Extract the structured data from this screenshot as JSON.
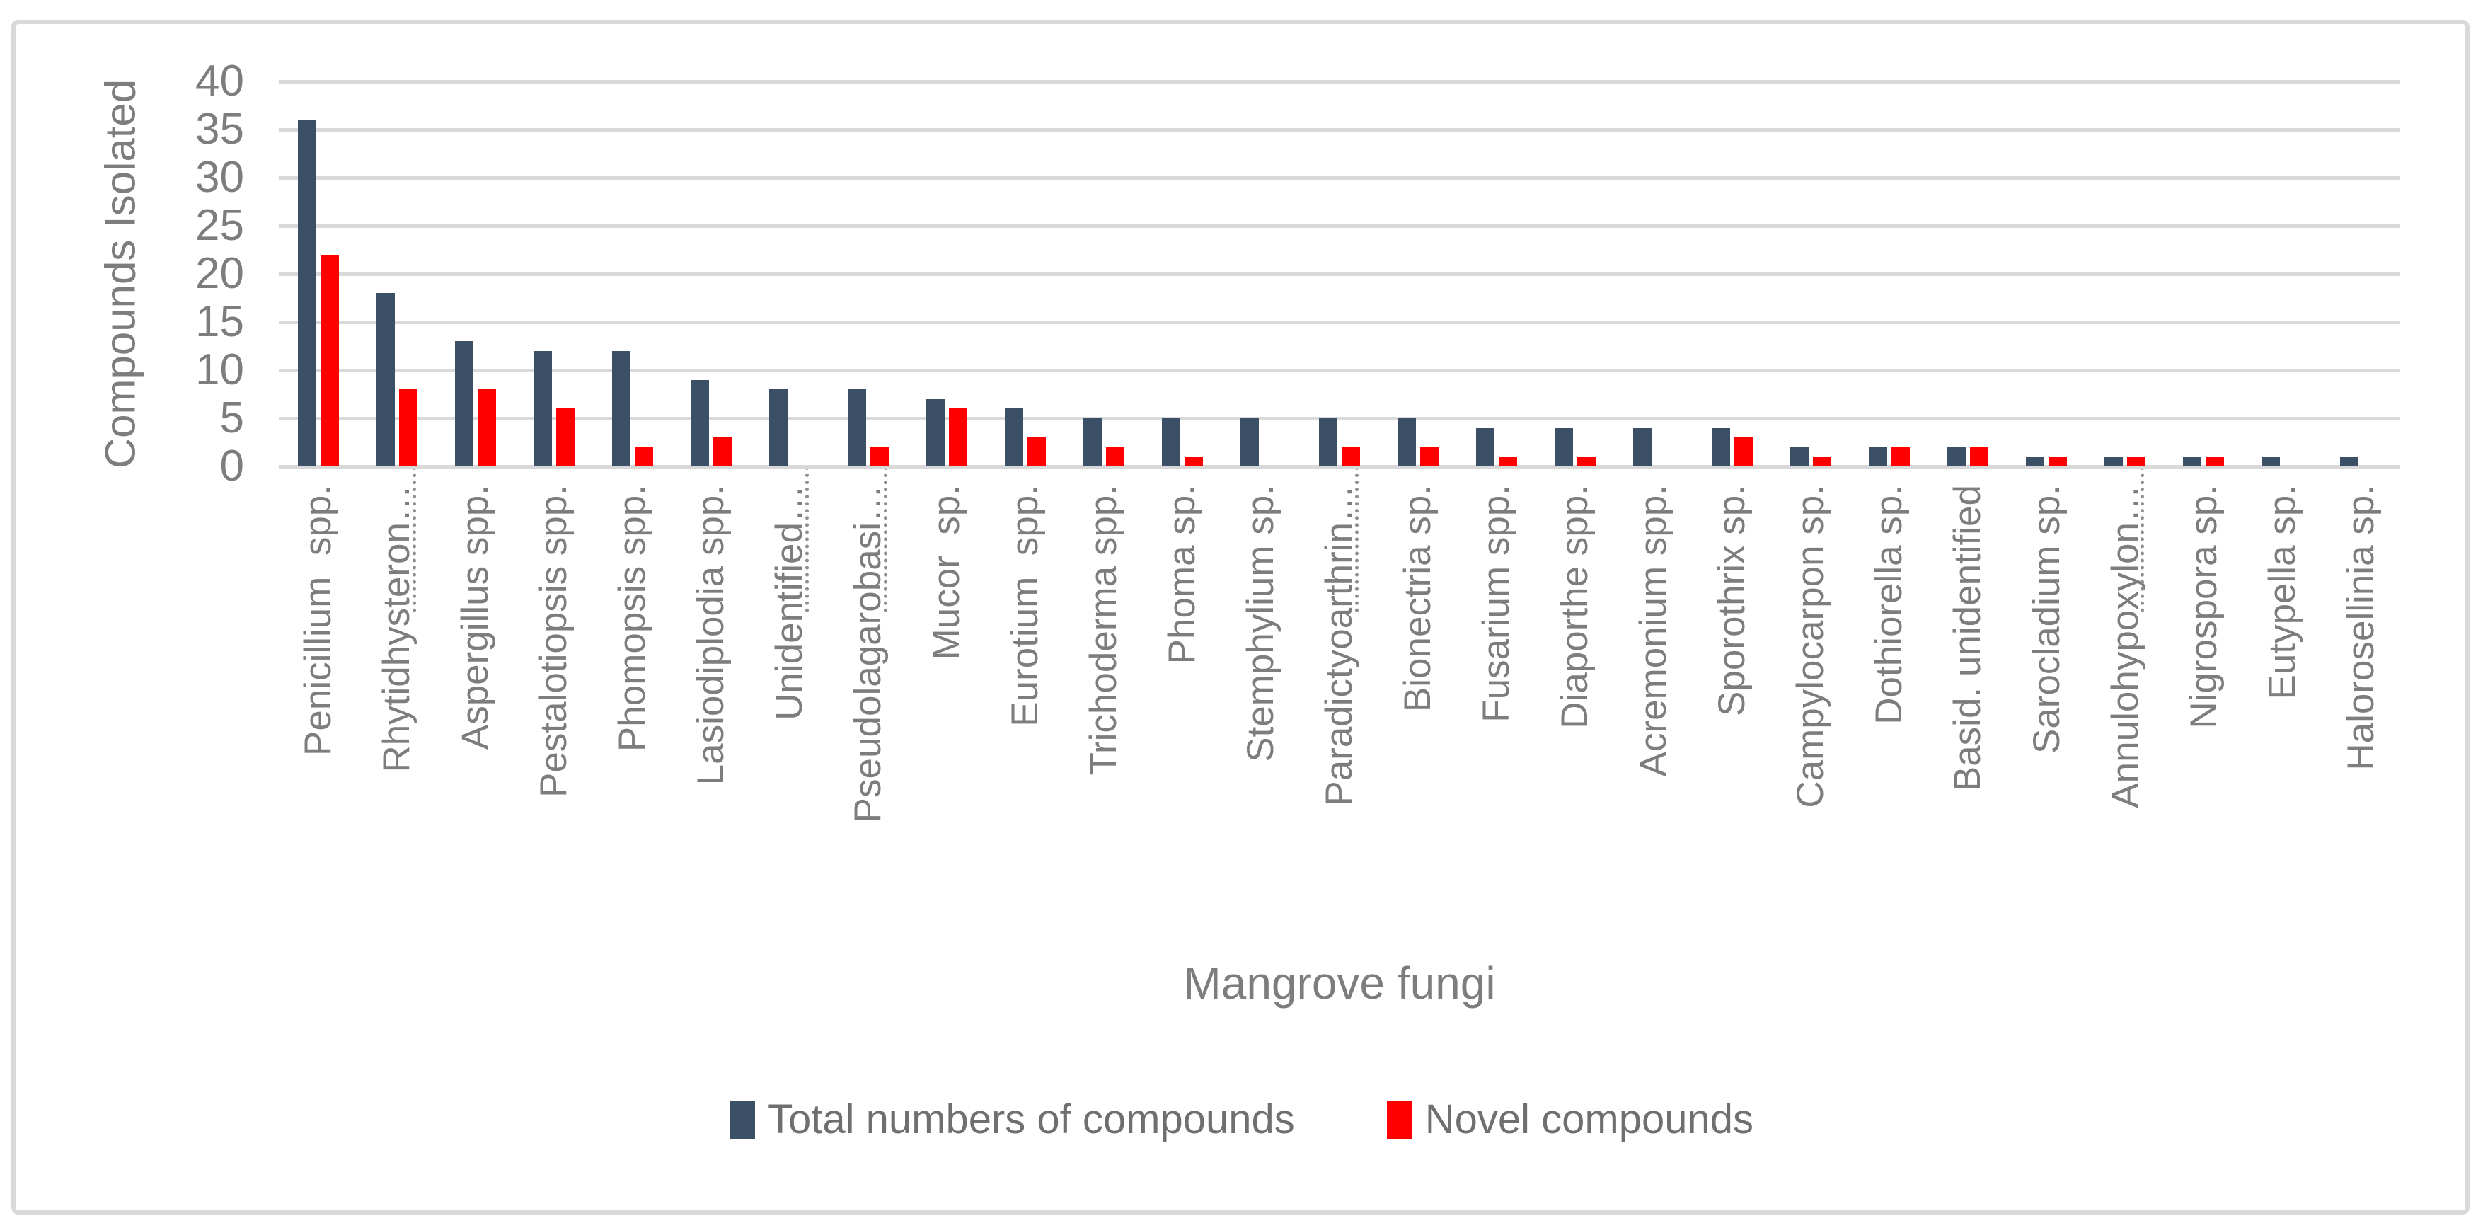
{
  "chart_data": {
    "type": "bar",
    "xlabel": "Mangrove fungi",
    "ylabel": "Compounds Isolated",
    "ylim": [
      0,
      40
    ],
    "yticks": [
      0,
      5,
      10,
      15,
      20,
      25,
      30,
      35,
      40
    ],
    "grid": true,
    "gridline_color": "#D9D9D9",
    "legend_position": "bottom-center",
    "categories": [
      {
        "label": "Penicillium  spp.",
        "truncated": false
      },
      {
        "label": "Rhytidhysteron…",
        "truncated": true
      },
      {
        "label": "Aspergillus spp.",
        "truncated": false
      },
      {
        "label": "Pestalotiopsis spp.",
        "truncated": false
      },
      {
        "label": "Phomopsis spp.",
        "truncated": false
      },
      {
        "label": "Lasiodiplodia spp.",
        "truncated": false
      },
      {
        "label": "Unidentified…",
        "truncated": true
      },
      {
        "label": "Pseudolagarobasi…",
        "truncated": true
      },
      {
        "label": "Mucor  sp.",
        "truncated": false
      },
      {
        "label": "Eurotium  spp.",
        "truncated": false
      },
      {
        "label": "Trichoderma spp.",
        "truncated": false
      },
      {
        "label": "Phoma sp.",
        "truncated": false
      },
      {
        "label": "Stemphylium sp.",
        "truncated": false
      },
      {
        "label": "Paradictyoarthrin…",
        "truncated": true
      },
      {
        "label": "Bionectria sp.",
        "truncated": false
      },
      {
        "label": "Fusarium spp.",
        "truncated": false
      },
      {
        "label": "Diaporthe spp.",
        "truncated": false
      },
      {
        "label": "Acremonium spp.",
        "truncated": false
      },
      {
        "label": "Sporothrix sp.",
        "truncated": false
      },
      {
        "label": "Campylocarpon sp.",
        "truncated": false
      },
      {
        "label": "Dothiorella sp.",
        "truncated": false
      },
      {
        "label": "Basid. unidentified",
        "truncated": false
      },
      {
        "label": "Sarocladium sp.",
        "truncated": false
      },
      {
        "label": "Annulohypoxylon…",
        "truncated": true
      },
      {
        "label": "Nigrospora sp.",
        "truncated": false
      },
      {
        "label": "Eutypella sp.",
        "truncated": false
      },
      {
        "label": "Halorosellinia sp.",
        "truncated": false
      }
    ],
    "series": [
      {
        "id": "total-compounds",
        "name": "Total numbers of compounds",
        "color": "#3B5067",
        "values": [
          36,
          18,
          13,
          12,
          12,
          9,
          8,
          8,
          7,
          6,
          5,
          5,
          5,
          5,
          5,
          4,
          4,
          4,
          4,
          2,
          2,
          2,
          1,
          1,
          1,
          1,
          1
        ]
      },
      {
        "id": "novel-compounds",
        "name": "Novel compounds",
        "color": "#FF0000",
        "values": [
          22,
          8,
          8,
          6,
          2,
          3,
          0,
          2,
          6,
          3,
          2,
          1,
          0,
          2,
          2,
          1,
          1,
          0,
          3,
          1,
          2,
          2,
          1,
          1,
          1,
          0,
          0
        ]
      }
    ]
  },
  "frame": {
    "border_color": "#D9D9D9",
    "background": "#FFFFFF"
  },
  "text_colors": {
    "axis_labels": "#7D7D7D",
    "legend_text": "#6F6F6F"
  }
}
